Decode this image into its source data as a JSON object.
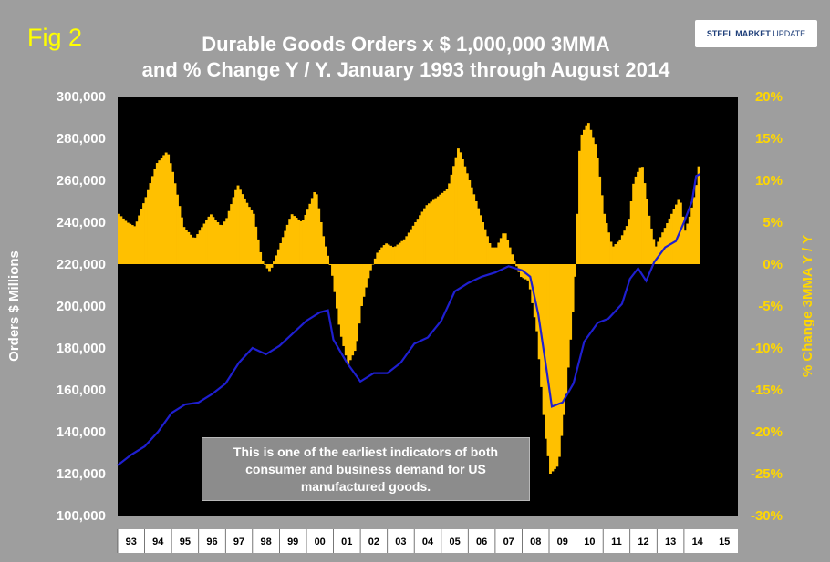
{
  "figure_label": "Fig 2",
  "title_line1": "Durable Goods Orders x $ 1,000,000 3MMA",
  "title_line2": "and % Change Y / Y. January 1993 through August 2014",
  "logo": {
    "part1": "STEEL MARKET",
    "part2": " UPDATE",
    "icon": "steel-market-update-logo"
  },
  "annotation": {
    "line1": "This is one of the earliest indicators of both",
    "line2": "consumer and business demand for US",
    "line3": "manufactured goods."
  },
  "colors": {
    "background": "#9e9e9e",
    "plot": "#000000",
    "orders": "#1f1fd0",
    "pct": "#ffc000"
  },
  "chart_data": {
    "type": "bar+line",
    "title": "Durable Goods Orders x $ 1,000,000 3MMA and % Change Y / Y. January 1993 through August 2014",
    "ylabel": "Orders $ Millions",
    "y2label": "% Change 3MMA Y / Y",
    "ylim": [
      100000,
      300000
    ],
    "y2lim": [
      -30,
      20
    ],
    "yticks": [
      "100,000",
      "120,000",
      "140,000",
      "160,000",
      "180,000",
      "200,000",
      "220,000",
      "240,000",
      "260,000",
      "280,000",
      "300,000"
    ],
    "y2ticks": [
      "-30%",
      "-25%",
      "-20%",
      "-15%",
      "-10%",
      "-5%",
      "0%",
      "5%",
      "10%",
      "15%",
      "20%"
    ],
    "xticks": [
      "93",
      "94",
      "95",
      "96",
      "97",
      "98",
      "99",
      "00",
      "01",
      "02",
      "03",
      "04",
      "05",
      "06",
      "07",
      "08",
      "09",
      "10",
      "11",
      "12",
      "13",
      "14",
      "15"
    ],
    "xlim": [
      1993.0,
      2016.0
    ],
    "grid": false,
    "series": [
      {
        "name": "Durable Goods Orders 3MMA",
        "axis": "left",
        "kind": "line",
        "points": [
          [
            1993.0,
            124000
          ],
          [
            1993.5,
            129000
          ],
          [
            1994.0,
            133000
          ],
          [
            1994.5,
            140000
          ],
          [
            1995.0,
            149000
          ],
          [
            1995.5,
            153000
          ],
          [
            1996.0,
            154000
          ],
          [
            1996.5,
            158000
          ],
          [
            1997.0,
            163000
          ],
          [
            1997.5,
            173000
          ],
          [
            1998.0,
            180000
          ],
          [
            1998.5,
            177000
          ],
          [
            1999.0,
            181000
          ],
          [
            1999.5,
            187000
          ],
          [
            2000.0,
            193000
          ],
          [
            2000.5,
            197000
          ],
          [
            2000.8,
            198000
          ],
          [
            2001.0,
            184000
          ],
          [
            2001.5,
            173000
          ],
          [
            2002.0,
            164000
          ],
          [
            2002.5,
            168000
          ],
          [
            2003.0,
            168000
          ],
          [
            2003.5,
            173000
          ],
          [
            2004.0,
            182000
          ],
          [
            2004.5,
            185000
          ],
          [
            2005.0,
            193000
          ],
          [
            2005.5,
            207000
          ],
          [
            2006.0,
            211000
          ],
          [
            2006.5,
            214000
          ],
          [
            2007.0,
            216000
          ],
          [
            2007.5,
            219000
          ],
          [
            2008.0,
            217000
          ],
          [
            2008.3,
            214000
          ],
          [
            2008.6,
            196000
          ],
          [
            2008.9,
            170000
          ],
          [
            2009.1,
            152000
          ],
          [
            2009.5,
            154000
          ],
          [
            2009.9,
            163000
          ],
          [
            2010.3,
            183000
          ],
          [
            2010.8,
            192000
          ],
          [
            2011.2,
            194000
          ],
          [
            2011.7,
            201000
          ],
          [
            2012.0,
            213000
          ],
          [
            2012.3,
            218000
          ],
          [
            2012.6,
            212000
          ],
          [
            2012.9,
            221000
          ],
          [
            2013.3,
            228000
          ],
          [
            2013.7,
            231000
          ],
          [
            2014.0,
            240000
          ],
          [
            2014.3,
            250000
          ],
          [
            2014.45,
            262000
          ],
          [
            2014.6,
            263000
          ]
        ]
      },
      {
        "name": "% Change 3MMA Y / Y",
        "axis": "right",
        "kind": "bar",
        "points": [
          [
            1993.0,
            6.0
          ],
          [
            1993.3,
            5.0
          ],
          [
            1993.6,
            4.5
          ],
          [
            1994.0,
            8.0
          ],
          [
            1994.4,
            12.0
          ],
          [
            1994.8,
            13.5
          ],
          [
            1995.0,
            11.0
          ],
          [
            1995.4,
            4.5
          ],
          [
            1995.8,
            3.0
          ],
          [
            1996.0,
            4.0
          ],
          [
            1996.4,
            6.0
          ],
          [
            1996.8,
            4.5
          ],
          [
            1997.0,
            5.5
          ],
          [
            1997.4,
            9.5
          ],
          [
            1997.8,
            7.0
          ],
          [
            1998.0,
            6.0
          ],
          [
            1998.3,
            0.5
          ],
          [
            1998.6,
            -1.0
          ],
          [
            1999.0,
            2.5
          ],
          [
            1999.4,
            6.0
          ],
          [
            1999.8,
            5.0
          ],
          [
            2000.0,
            6.5
          ],
          [
            2000.3,
            9.0
          ],
          [
            2000.6,
            3.0
          ],
          [
            2000.9,
            -1.0
          ],
          [
            2001.2,
            -8.0
          ],
          [
            2001.5,
            -12.0
          ],
          [
            2001.8,
            -10.0
          ],
          [
            2002.0,
            -5.0
          ],
          [
            2002.3,
            -1.0
          ],
          [
            2002.6,
            1.5
          ],
          [
            2002.9,
            2.5
          ],
          [
            2003.2,
            2.0
          ],
          [
            2003.6,
            3.0
          ],
          [
            2004.0,
            5.0
          ],
          [
            2004.4,
            7.0
          ],
          [
            2004.8,
            8.0
          ],
          [
            2005.2,
            9.0
          ],
          [
            2005.6,
            14.0
          ],
          [
            2006.0,
            10.0
          ],
          [
            2006.4,
            6.0
          ],
          [
            2006.8,
            2.0
          ],
          [
            2007.0,
            2.0
          ],
          [
            2007.3,
            4.0
          ],
          [
            2007.6,
            1.0
          ],
          [
            2007.9,
            -1.5
          ],
          [
            2008.2,
            -2.0
          ],
          [
            2008.5,
            -8.0
          ],
          [
            2008.8,
            -20.0
          ],
          [
            2009.0,
            -25.0
          ],
          [
            2009.3,
            -24.0
          ],
          [
            2009.6,
            -15.0
          ],
          [
            2009.9,
            -3.0
          ],
          [
            2010.1,
            15.0
          ],
          [
            2010.4,
            17.0
          ],
          [
            2010.7,
            14.0
          ],
          [
            2011.0,
            6.0
          ],
          [
            2011.3,
            2.0
          ],
          [
            2011.6,
            3.0
          ],
          [
            2011.9,
            5.0
          ],
          [
            2012.1,
            10.0
          ],
          [
            2012.4,
            12.0
          ],
          [
            2012.7,
            5.0
          ],
          [
            2012.9,
            2.0
          ],
          [
            2013.2,
            4.0
          ],
          [
            2013.5,
            6.0
          ],
          [
            2013.8,
            8.0
          ],
          [
            2014.0,
            4.0
          ],
          [
            2014.2,
            6.0
          ],
          [
            2014.4,
            9.0
          ],
          [
            2014.55,
            13.0
          ]
        ]
      }
    ]
  }
}
